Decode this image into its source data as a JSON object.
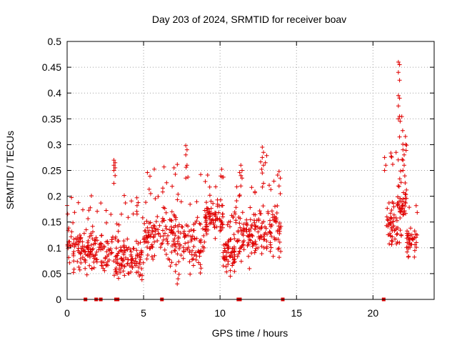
{
  "chart_data": {
    "type": "scatter",
    "title": "Day 203 of 2024, SRMTID for receiver boav",
    "xlabel": "GPS time / hours",
    "ylabel": "SRMTID / TECUs",
    "xlim": [
      0,
      24
    ],
    "ylim": [
      0,
      0.5
    ],
    "xticks": [
      0,
      5,
      10,
      15,
      20
    ],
    "yticks": [
      0,
      0.05,
      0.1,
      0.15,
      0.2,
      0.25,
      0.3,
      0.35,
      0.4,
      0.45,
      0.5
    ],
    "xtick_labels": [
      "0",
      "5",
      "10",
      "15",
      "20"
    ],
    "ytick_labels": [
      "0",
      "0.05",
      "0.1",
      "0.15",
      "0.2",
      "0.25",
      "0.3",
      "0.35",
      "0.4",
      "0.45",
      "0.5"
    ],
    "grid": true,
    "marker": "+",
    "color": "#e00000",
    "segments": [
      {
        "t_start": 0.0,
        "t_end": 1.6,
        "base": 0.1,
        "spread": 0.035,
        "density": 90
      },
      {
        "t_start": 1.6,
        "t_end": 3.0,
        "base": 0.095,
        "spread": 0.03,
        "density": 70
      },
      {
        "t_start": 3.0,
        "t_end": 5.0,
        "base": 0.08,
        "spread": 0.04,
        "density": 110
      },
      {
        "t_start": 5.0,
        "t_end": 7.0,
        "base": 0.12,
        "spread": 0.045,
        "density": 100
      },
      {
        "t_start": 7.0,
        "t_end": 9.0,
        "base": 0.11,
        "spread": 0.05,
        "density": 100
      },
      {
        "t_start": 9.0,
        "t_end": 10.2,
        "base": 0.16,
        "spread": 0.03,
        "density": 80
      },
      {
        "t_start": 10.2,
        "t_end": 11.0,
        "base": 0.09,
        "spread": 0.03,
        "density": 60
      },
      {
        "t_start": 11.0,
        "t_end": 12.5,
        "base": 0.13,
        "spread": 0.04,
        "density": 90
      },
      {
        "t_start": 12.5,
        "t_end": 14.0,
        "base": 0.14,
        "spread": 0.045,
        "density": 80
      },
      {
        "t_start": 20.8,
        "t_end": 21.6,
        "base": 0.14,
        "spread": 0.05,
        "density": 50
      },
      {
        "t_start": 21.6,
        "t_end": 22.2,
        "base": 0.18,
        "spread": 0.06,
        "density": 50
      },
      {
        "t_start": 22.2,
        "t_end": 22.9,
        "base": 0.11,
        "spread": 0.025,
        "density": 40
      }
    ],
    "peaks": [
      {
        "t": 3.1,
        "values": [
          0.27,
          0.265,
          0.26,
          0.255,
          0.25,
          0.24,
          0.225
        ]
      },
      {
        "t": 7.8,
        "values": [
          0.298,
          0.29,
          0.28,
          0.26,
          0.235
        ]
      },
      {
        "t": 11.4,
        "values": [
          0.26,
          0.25,
          0.24,
          0.235,
          0.22
        ]
      },
      {
        "t": 12.8,
        "values": [
          0.295,
          0.285,
          0.275,
          0.26,
          0.245,
          0.225
        ]
      },
      {
        "t": 13.9,
        "values": [
          0.248,
          0.235,
          0.22,
          0.205
        ]
      },
      {
        "t": 21.7,
        "values": [
          0.46,
          0.455,
          0.44,
          0.425,
          0.395,
          0.39,
          0.375,
          0.355,
          0.35,
          0.315
        ]
      },
      {
        "t": 22.0,
        "values": [
          0.29,
          0.28,
          0.27,
          0.26,
          0.25
        ]
      },
      {
        "t": 20.8,
        "values": [
          0.275,
          0.26,
          0.25
        ]
      }
    ],
    "low_points": [
      {
        "t": 7.2,
        "value": 0.03
      },
      {
        "t": 7.25,
        "value": 0.04
      },
      {
        "t": 0.0,
        "value": 0.182
      }
    ],
    "zero_markers": [
      1.2,
      1.9,
      2.2,
      3.2,
      3.3,
      6.2,
      11.2,
      11.3,
      14.1,
      20.7
    ]
  }
}
